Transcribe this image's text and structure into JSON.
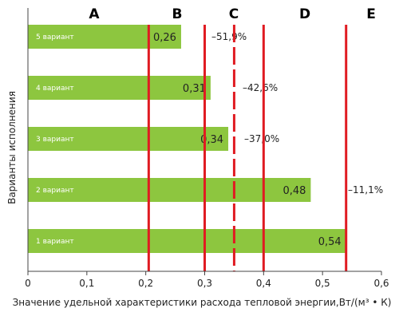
{
  "chart_data": {
    "type": "bar",
    "orientation": "horizontal",
    "categories": [
      "5 вариант",
      "4 вариант",
      "3 вариант",
      "2 вариант",
      "1 вариант"
    ],
    "values": [
      0.26,
      0.31,
      0.34,
      0.48,
      0.54
    ],
    "value_labels": [
      "0,26",
      "0,31",
      "0,34",
      "0,48",
      "0,54"
    ],
    "percent_labels": [
      "–51,9%",
      "–42,6%",
      "–37,0%",
      "–11,1%",
      ""
    ],
    "thresholds": [
      {
        "label": "A",
        "value": null,
        "line": false
      },
      {
        "label": "B",
        "value": 0.205,
        "line": true,
        "style": "solid"
      },
      {
        "label": "C",
        "value": 0.35,
        "line": true,
        "style": "dashed"
      },
      {
        "label": "D",
        "value": 0.4,
        "line": true,
        "style": "solid"
      },
      {
        "label": "E",
        "value": 0.54,
        "line": true,
        "style": "solid"
      }
    ],
    "extra_line": {
      "value": 0.3,
      "style": "solid"
    },
    "xlim": [
      0,
      0.6
    ],
    "x_ticks": [
      0,
      0.1,
      0.2,
      0.3,
      0.4,
      0.5,
      0.6
    ],
    "x_tick_labels": [
      "0",
      "0,1",
      "0,2",
      "0,3",
      "0,4",
      "0,5",
      "0,6"
    ],
    "xlabel": "Значение удельной характеристики расхода тепловой энергии,Вт/(м³ • К)",
    "ylabel": "Варианты исполнения",
    "colors": {
      "bar": "#8dc63f",
      "line": "#e01b22",
      "axis": "#444444"
    }
  }
}
